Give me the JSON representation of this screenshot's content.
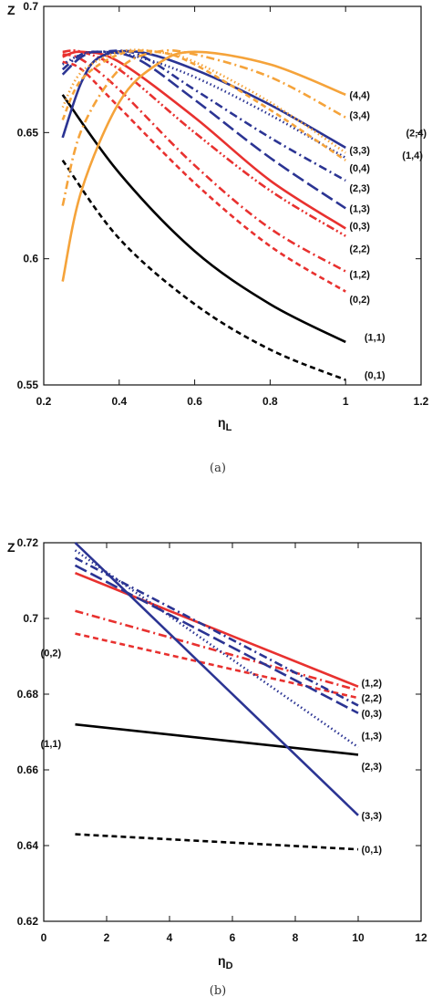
{
  "colors": {
    "black": "#000000",
    "red": "#e8312f",
    "blue": "#2b3493",
    "orange": "#f5a33a"
  },
  "chart_data": [
    {
      "type": "line",
      "caption": "(a)",
      "xlabel_main": "η",
      "xlabel_sub": "L",
      "ylabel": "Z",
      "xlim": [
        0.2,
        1.2
      ],
      "ylim": [
        0.55,
        0.7
      ],
      "xticks": [
        0.2,
        0.4,
        0.6,
        0.8,
        1,
        1.2
      ],
      "xtick_labels": [
        "0.2",
        "0.4",
        "0.6",
        "0.8",
        "1",
        "1.2"
      ],
      "yticks": [
        0.55,
        0.6,
        0.65,
        0.7
      ],
      "ytick_labels": [
        "0.55",
        "0.6",
        "0.65",
        "0.7"
      ],
      "series": [
        {
          "name": "(0,1)",
          "color": "black",
          "dash": "dashed",
          "x": [
            0.25,
            0.4,
            0.6,
            0.8,
            1.0
          ],
          "y": [
            0.639,
            0.608,
            0.582,
            0.564,
            0.552
          ]
        },
        {
          "name": "(1,1)",
          "color": "black",
          "dash": "solid",
          "x": [
            0.25,
            0.4,
            0.6,
            0.8,
            1.0
          ],
          "y": [
            0.665,
            0.634,
            0.603,
            0.582,
            0.567
          ]
        },
        {
          "name": "(0,2)",
          "color": "red",
          "dash": "dashed",
          "x": [
            0.25,
            0.3,
            0.4,
            0.6,
            0.8,
            1.0
          ],
          "y": [
            0.678,
            0.675,
            0.66,
            0.63,
            0.605,
            0.587
          ]
        },
        {
          "name": "(1,2)",
          "color": "red",
          "dash": "dashdot",
          "x": [
            0.25,
            0.3,
            0.4,
            0.6,
            0.8,
            1.0
          ],
          "y": [
            0.681,
            0.679,
            0.667,
            0.637,
            0.612,
            0.595
          ]
        },
        {
          "name": "(2,2)",
          "color": "red",
          "dash": "dashdotdot",
          "x": [
            0.25,
            0.3,
            0.4,
            0.6,
            0.8,
            1.0
          ],
          "y": [
            0.682,
            0.682,
            0.675,
            0.65,
            0.627,
            0.609
          ]
        },
        {
          "name": "(0,3)",
          "color": "red",
          "dash": "solid",
          "x": [
            0.25,
            0.3,
            0.4,
            0.6,
            0.8,
            1.0
          ],
          "y": [
            0.68,
            0.682,
            0.678,
            0.656,
            0.631,
            0.612
          ]
        },
        {
          "name": "(1,3)",
          "color": "blue",
          "dash": "longdash",
          "x": [
            0.25,
            0.3,
            0.35,
            0.45,
            0.6,
            0.8,
            1.0
          ],
          "y": [
            0.673,
            0.68,
            0.682,
            0.679,
            0.663,
            0.64,
            0.62
          ]
        },
        {
          "name": "(2,3)",
          "color": "blue",
          "dash": "dashdot",
          "x": [
            0.25,
            0.3,
            0.35,
            0.45,
            0.6,
            0.8,
            1.0
          ],
          "y": [
            0.675,
            0.681,
            0.682,
            0.681,
            0.667,
            0.648,
            0.631
          ]
        },
        {
          "name": "(0,4)",
          "color": "blue",
          "dash": "dotted",
          "x": [
            0.25,
            0.3,
            0.35,
            0.45,
            0.6,
            0.8,
            1.0
          ],
          "y": [
            0.677,
            0.681,
            0.682,
            0.68,
            0.672,
            0.657,
            0.64
          ]
        },
        {
          "name": "(3,3)",
          "color": "blue",
          "dash": "solid",
          "x": [
            0.25,
            0.3,
            0.35,
            0.45,
            0.6,
            0.8,
            1.0
          ],
          "y": [
            0.648,
            0.67,
            0.68,
            0.682,
            0.675,
            0.661,
            0.644
          ]
        },
        {
          "name": "(1,4)",
          "color": "orange",
          "dash": "dashed",
          "x": [
            0.25,
            0.3,
            0.4,
            0.5,
            0.6,
            0.8,
            1.0
          ],
          "y": [
            0.655,
            0.671,
            0.681,
            0.682,
            0.677,
            0.659,
            0.639
          ]
        },
        {
          "name": "(2,4)",
          "color": "orange",
          "dash": "dotted",
          "x": [
            0.25,
            0.3,
            0.4,
            0.5,
            0.6,
            0.8,
            1.0
          ],
          "y": [
            0.66,
            0.674,
            0.682,
            0.682,
            0.678,
            0.662,
            0.642
          ]
        },
        {
          "name": "(3,4)",
          "color": "orange",
          "dash": "dashdot",
          "x": [
            0.25,
            0.3,
            0.4,
            0.5,
            0.6,
            0.8,
            1.0
          ],
          "y": [
            0.621,
            0.651,
            0.675,
            0.682,
            0.681,
            0.672,
            0.656
          ]
        },
        {
          "name": "(4,4)",
          "color": "orange",
          "dash": "solid",
          "x": [
            0.25,
            0.3,
            0.4,
            0.5,
            0.6,
            0.8,
            1.0
          ],
          "y": [
            0.591,
            0.627,
            0.662,
            0.677,
            0.682,
            0.677,
            0.665
          ]
        }
      ],
      "annotations": [
        {
          "text": "(4,4)",
          "x": 1.01,
          "y": 0.665
        },
        {
          "text": "(3,4)",
          "x": 1.01,
          "y": 0.657
        },
        {
          "text": "(2,4)",
          "x": 1.16,
          "y": 0.65
        },
        {
          "text": "(3,3)",
          "x": 1.01,
          "y": 0.643
        },
        {
          "text": "(1,4)",
          "x": 1.15,
          "y": 0.641
        },
        {
          "text": "(0,4)",
          "x": 1.01,
          "y": 0.636
        },
        {
          "text": "(2,3)",
          "x": 1.01,
          "y": 0.628
        },
        {
          "text": "(1,3)",
          "x": 1.01,
          "y": 0.62
        },
        {
          "text": "(0,3)",
          "x": 1.01,
          "y": 0.613
        },
        {
          "text": "(2,2)",
          "x": 1.01,
          "y": 0.604
        },
        {
          "text": "(1,2)",
          "x": 1.01,
          "y": 0.594
        },
        {
          "text": "(0,2)",
          "x": 1.01,
          "y": 0.584
        },
        {
          "text": "(1,1)",
          "x": 1.05,
          "y": 0.569
        },
        {
          "text": "(0,1)",
          "x": 1.05,
          "y": 0.554
        }
      ]
    },
    {
      "type": "line",
      "caption": "(b)",
      "xlabel_main": "η",
      "xlabel_sub": "D",
      "ylabel": "Z",
      "xlim": [
        0,
        12
      ],
      "ylim": [
        0.62,
        0.72
      ],
      "xticks": [
        0,
        2,
        4,
        6,
        8,
        10,
        12
      ],
      "xtick_labels": [
        "0",
        "2",
        "4",
        "6",
        "8",
        "10",
        "12"
      ],
      "yticks": [
        0.62,
        0.64,
        0.66,
        0.68,
        0.7,
        0.72
      ],
      "ytick_labels": [
        "0.62",
        "0.64",
        "0.66",
        "0.68",
        "0.7",
        "0.72"
      ],
      "series": [
        {
          "name": "(0,1)",
          "color": "black",
          "dash": "dashed",
          "x": [
            1,
            10
          ],
          "y": [
            0.643,
            0.639
          ]
        },
        {
          "name": "(1,1)",
          "color": "black",
          "dash": "solid",
          "x": [
            1,
            10
          ],
          "y": [
            0.672,
            0.664
          ]
        },
        {
          "name": "(0,2)",
          "color": "red",
          "dash": "dashed",
          "x": [
            1,
            10
          ],
          "y": [
            0.696,
            0.679
          ]
        },
        {
          "name": "(1,2)",
          "color": "red",
          "dash": "dashdot",
          "x": [
            1,
            10
          ],
          "y": [
            0.702,
            0.681
          ]
        },
        {
          "name": "(2,2)",
          "color": "red",
          "dash": "solid",
          "x": [
            1,
            10
          ],
          "y": [
            0.712,
            0.682
          ]
        },
        {
          "name": "(0,3)",
          "color": "blue",
          "dash": "longdash",
          "x": [
            1,
            10
          ],
          "y": [
            0.714,
            0.675
          ]
        },
        {
          "name": "(1,3)",
          "color": "blue",
          "dash": "dashdot",
          "x": [
            1,
            10
          ],
          "y": [
            0.716,
            0.677
          ]
        },
        {
          "name": "(2,3)",
          "color": "blue",
          "dash": "dotted",
          "x": [
            1,
            10
          ],
          "y": [
            0.718,
            0.666
          ]
        },
        {
          "name": "(3,3)",
          "color": "blue",
          "dash": "solid",
          "x": [
            1,
            10
          ],
          "y": [
            0.72,
            0.648
          ]
        }
      ],
      "annotations": [
        {
          "text": "(1,2)",
          "x": 10.1,
          "y": 0.683
        },
        {
          "text": "(2,2)",
          "x": 10.1,
          "y": 0.679
        },
        {
          "text": "(0,3)",
          "x": 10.1,
          "y": 0.675
        },
        {
          "text": "(1,3)",
          "x": 10.1,
          "y": 0.669
        },
        {
          "text": "(2,3)",
          "x": 10.1,
          "y": 0.661
        },
        {
          "text": "(3,3)",
          "x": 10.1,
          "y": 0.648
        },
        {
          "text": "(0,1)",
          "x": 10.1,
          "y": 0.639
        },
        {
          "text": "(0,2)",
          "x": -0.1,
          "y": 0.691
        },
        {
          "text": "(1,1)",
          "x": -0.1,
          "y": 0.667
        }
      ]
    }
  ]
}
